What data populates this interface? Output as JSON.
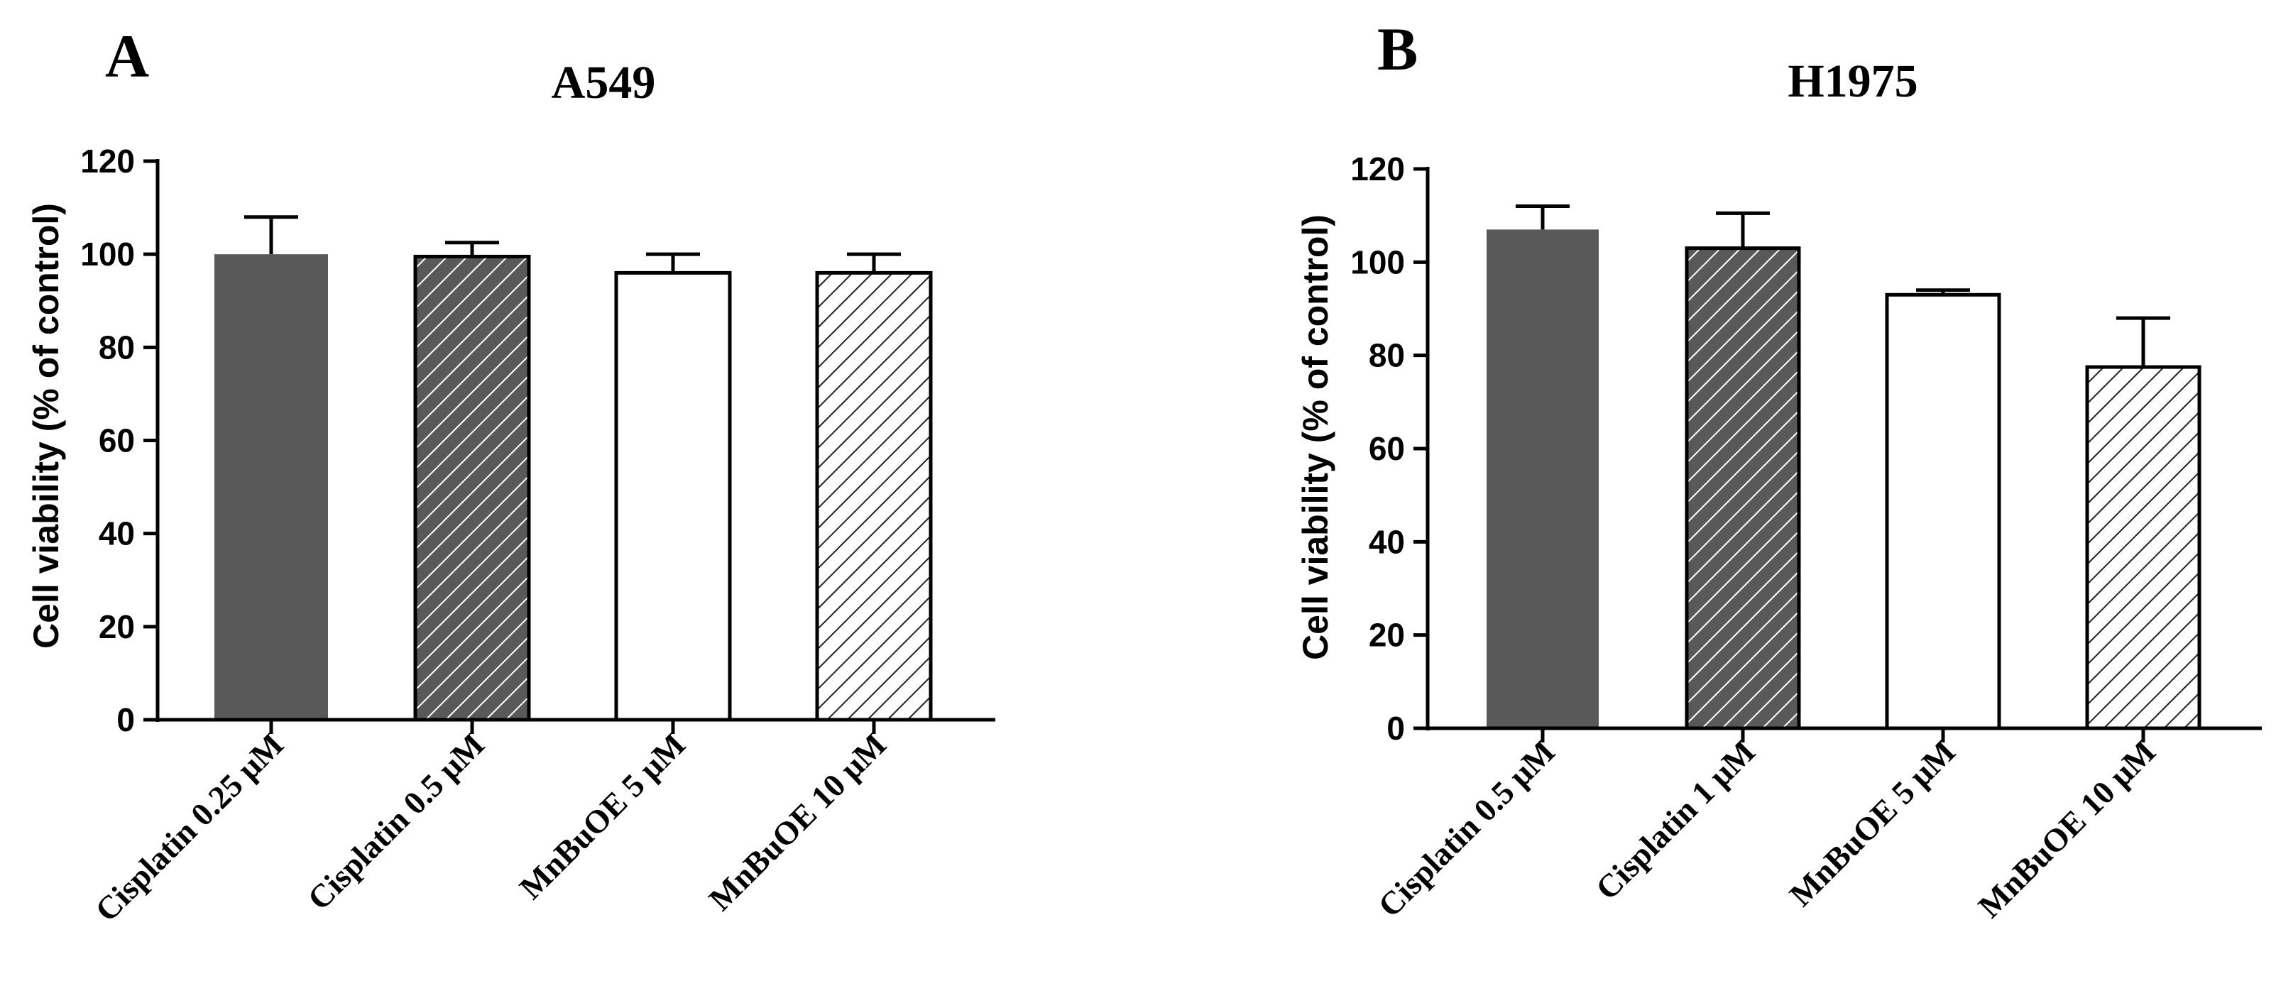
{
  "colors": {
    "dark_gray": "#595959",
    "white": "#ffffff",
    "black": "#000000"
  },
  "chart_data": [
    {
      "type": "bar",
      "panel_label": "A",
      "title": "A549",
      "ylabel": "Cell viability (% of control)",
      "xlabel": "",
      "ylim": [
        0,
        120
      ],
      "yticks": [
        "0",
        "20",
        "40",
        "60",
        "80",
        "100",
        "120"
      ],
      "categories": [
        "Cisplatin 0.25 μM",
        "Cisplatin 0.5 μM",
        "MnBuOE 5 μM",
        "MnBuOE 10 μM"
      ],
      "values": [
        100,
        99.5,
        96,
        96
      ],
      "errors": [
        8,
        3,
        4,
        4
      ],
      "fills": [
        "solid-dark",
        "hatch-dense",
        "white",
        "hatch-light"
      ]
    },
    {
      "type": "bar",
      "panel_label": "B",
      "title": "H1975",
      "ylabel": "Cell viability (% of control)",
      "xlabel": "",
      "ylim": [
        0,
        120
      ],
      "yticks": [
        "0",
        "20",
        "40",
        "60",
        "80",
        "100",
        "120"
      ],
      "categories": [
        "Cisplatin 0.5 μM",
        "Cisplatin 1 μM",
        "MnBuOE 5 μM",
        "MnBuOE 10 μM"
      ],
      "values": [
        107,
        103,
        93,
        77.5
      ],
      "errors": [
        5,
        7.5,
        1,
        10.5
      ],
      "fills": [
        "solid-dark",
        "hatch-dense",
        "white",
        "hatch-light"
      ]
    }
  ]
}
